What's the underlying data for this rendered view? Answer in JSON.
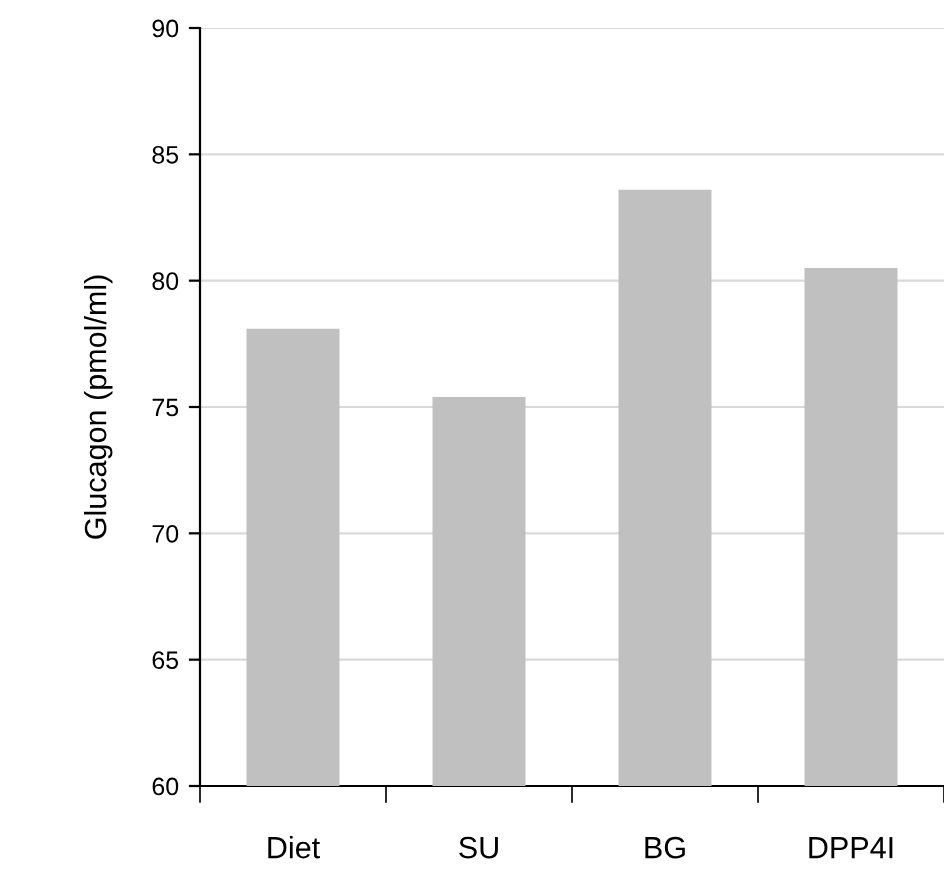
{
  "chart_data": {
    "type": "bar",
    "ylabel": "Glucagon (pmol/ml)",
    "categories": [
      "Diet",
      "SU",
      "BG",
      "DPP4I"
    ],
    "values": [
      78.1,
      75.4,
      83.6,
      80.5
    ],
    "color": "#c0c0c0",
    "ylim": [
      60,
      90
    ],
    "yticks": [
      60,
      65,
      70,
      75,
      80,
      85,
      90
    ],
    "grid": "y",
    "legend": false
  }
}
